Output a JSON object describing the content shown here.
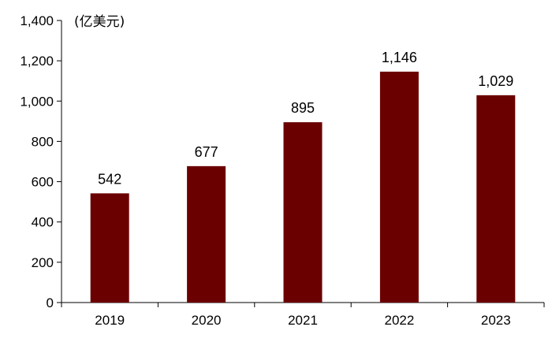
{
  "chart_data": {
    "type": "bar",
    "title": "",
    "unit_label": "(亿美元)",
    "xlabel": "",
    "ylabel": "",
    "categories": [
      "2019",
      "2020",
      "2021",
      "2022",
      "2023"
    ],
    "values": [
      542,
      677,
      895,
      1146,
      1029
    ],
    "data_labels": [
      "542",
      "677",
      "895",
      "1,146",
      "1,029"
    ],
    "ylim": [
      0,
      1400
    ],
    "yticks": [
      0,
      200,
      400,
      600,
      800,
      1000,
      1200,
      1400
    ],
    "ytick_labels": [
      "0",
      "200",
      "400",
      "600",
      "800",
      "1,000",
      "1,200",
      "1,400"
    ],
    "bar_color": "#6B0000",
    "grid": false,
    "legend": "none"
  }
}
